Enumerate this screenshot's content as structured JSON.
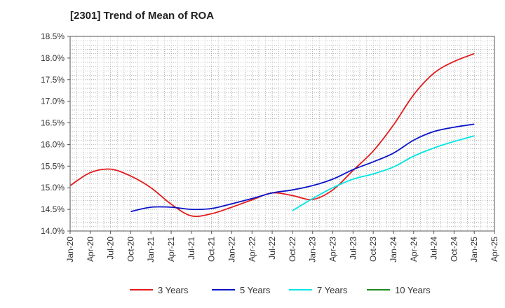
{
  "chart_data": {
    "type": "line",
    "title": "[2301]  Trend of Mean of ROA",
    "xlabel": "",
    "ylabel": "",
    "x_ticks": [
      "Jan-20",
      "Apr-20",
      "Jul-20",
      "Oct-20",
      "Jan-21",
      "Apr-21",
      "Jul-21",
      "Oct-21",
      "Jan-22",
      "Apr-22",
      "Jul-22",
      "Oct-22",
      "Jan-23",
      "Apr-23",
      "Jul-23",
      "Oct-23",
      "Jan-24",
      "Apr-24",
      "Jul-24",
      "Oct-24",
      "Jan-25",
      "Apr-25"
    ],
    "y_ticks": [
      "14.0%",
      "14.5%",
      "15.0%",
      "15.5%",
      "16.0%",
      "16.5%",
      "17.0%",
      "17.5%",
      "18.0%",
      "18.5%"
    ],
    "ylim": [
      14.0,
      18.5
    ],
    "grid": true,
    "legend_position": "bottom",
    "series": [
      {
        "name": "3 Years",
        "color": "#e31a1c",
        "x": [
          "Jan-20",
          "Apr-20",
          "Jul-20",
          "Oct-20",
          "Jan-21",
          "Apr-21",
          "Jul-21",
          "Oct-21",
          "Jan-22",
          "Apr-22",
          "Jul-22",
          "Oct-22",
          "Jan-23",
          "Apr-23",
          "Jul-23",
          "Oct-23",
          "Jan-24",
          "Apr-24",
          "Jul-24",
          "Oct-24",
          "Jan-25"
        ],
        "values": [
          15.05,
          15.35,
          15.43,
          15.27,
          15.0,
          14.62,
          14.35,
          14.4,
          14.55,
          14.72,
          14.88,
          14.82,
          14.73,
          14.95,
          15.4,
          15.85,
          16.45,
          17.15,
          17.65,
          17.92,
          18.1
        ]
      },
      {
        "name": "5 Years",
        "color": "#0a14c8",
        "x": [
          "Oct-20",
          "Jan-21",
          "Apr-21",
          "Jul-21",
          "Oct-21",
          "Jan-22",
          "Apr-22",
          "Jul-22",
          "Oct-22",
          "Jan-23",
          "Apr-23",
          "Jul-23",
          "Oct-23",
          "Jan-24",
          "Apr-24",
          "Jul-24",
          "Oct-24",
          "Jan-25"
        ],
        "values": [
          14.45,
          14.55,
          14.55,
          14.5,
          14.52,
          14.63,
          14.75,
          14.88,
          14.95,
          15.05,
          15.2,
          15.42,
          15.6,
          15.8,
          16.1,
          16.3,
          16.4,
          16.47
        ]
      },
      {
        "name": "7 Years",
        "color": "#00e5e5",
        "x": [
          "Oct-22",
          "Jan-23",
          "Apr-23",
          "Jul-23",
          "Oct-23",
          "Jan-24",
          "Apr-24",
          "Jul-24",
          "Oct-24",
          "Jan-25"
        ],
        "values": [
          14.47,
          14.75,
          15.0,
          15.2,
          15.32,
          15.48,
          15.73,
          15.92,
          16.07,
          16.2
        ]
      },
      {
        "name": "10 Years",
        "color": "#1e8c1e",
        "x": [],
        "values": []
      }
    ]
  }
}
